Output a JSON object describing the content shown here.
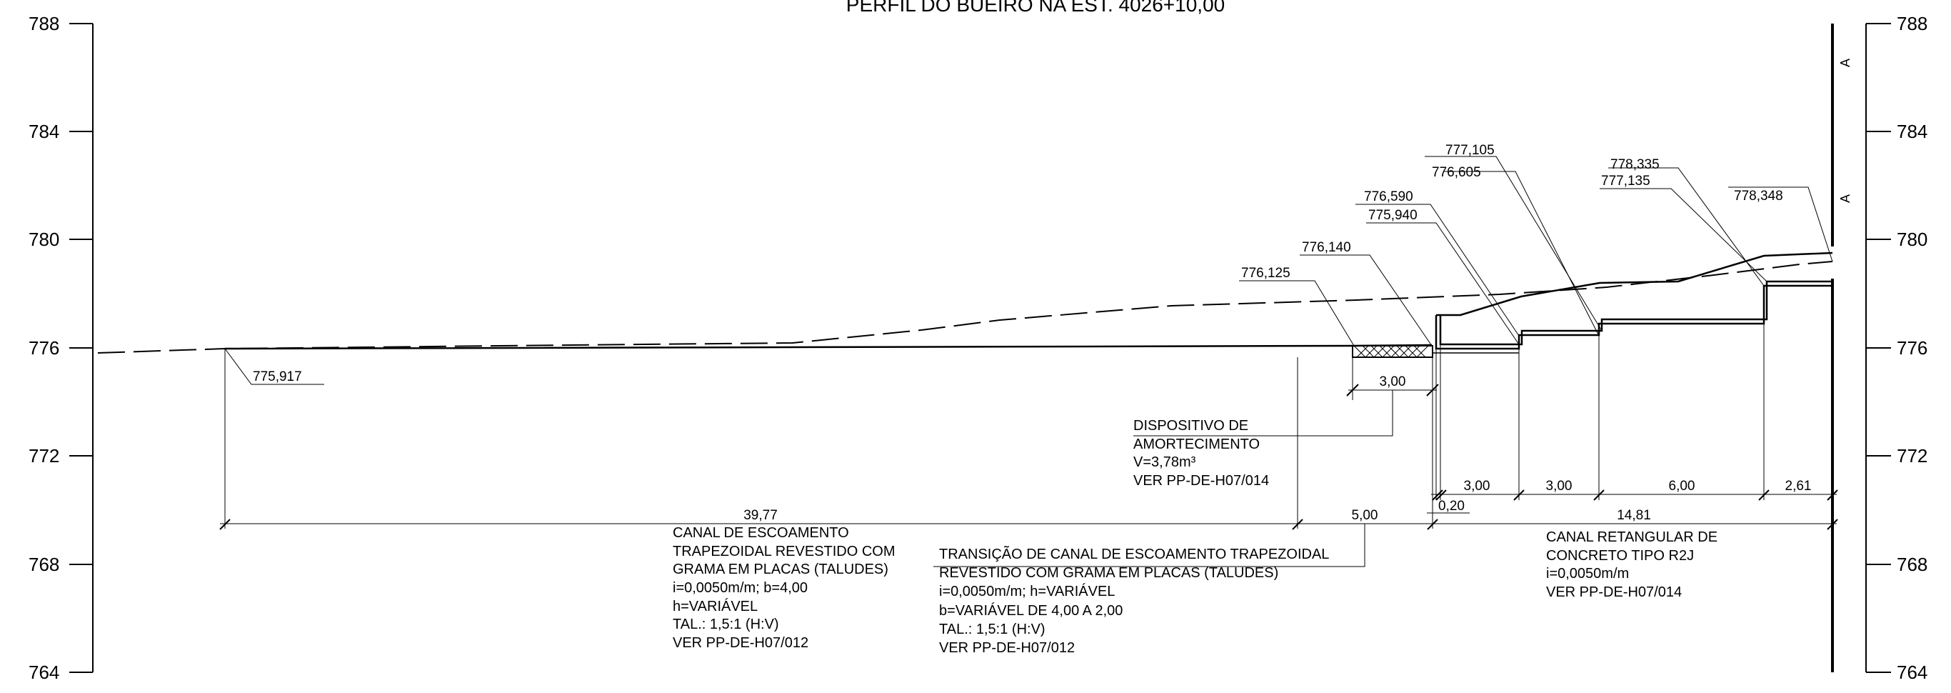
{
  "title": "PERFIL DO BUEIRO NA EST. 4026+10,00",
  "elevation_ticks": [
    "788",
    "784",
    "780",
    "776",
    "772",
    "768",
    "764"
  ],
  "section_marks": [
    "A",
    "A"
  ],
  "elevations": {
    "e775917": "775,917",
    "e776125": "776,125",
    "e776140": "776,140",
    "e775940": "775,940",
    "e776590": "776,590",
    "e776605": "776,605",
    "e777105": "777,105",
    "e777135": "777,135",
    "e778335": "778,335",
    "e778348": "778,348"
  },
  "dimensions": {
    "d3_00_top": "3,00",
    "d39_77": "39,77",
    "d5_00": "5,00",
    "d14_81": "14,81",
    "d0_20": "0,20",
    "d3_00_a": "3,00",
    "d3_00_b": "3,00",
    "d6_00": "6,00",
    "d2_61": "2,61"
  },
  "notes": {
    "dispositivo": [
      "DISPOSITIVO DE",
      "AMORTECIMENTO",
      "V=3,78m³",
      "VER PP-DE-H07/014"
    ],
    "canal_escoamento": [
      "CANAL DE ESCOAMENTO",
      "TRAPEZOIDAL REVESTIDO COM",
      "GRAMA EM PLACAS (TALUDES)",
      "i=0,0050m/m; b=4,00",
      "h=VARIÁVEL",
      "TAL.: 1,5:1 (H:V)",
      "VER PP-DE-H07/012"
    ],
    "transicao": [
      "TRANSIÇÃO DE CANAL DE ESCOAMENTO TRAPEZOIDAL",
      "REVESTIDO COM GRAMA EM PLACAS (TALUDES)",
      "i=0,0050m/m; h=VARIÁVEL",
      "b=VARIÁVEL DE 4,00 A 2,00",
      "TAL.: 1,5:1 (H:V)",
      "VER PP-DE-H07/012"
    ],
    "canal_retangular": [
      "CANAL RETANGULAR DE",
      "CONCRETO TIPO R2J",
      "i=0,0050m/m",
      "VER PP-DE-H07/014"
    ]
  },
  "colors": {
    "ink": "#000000",
    "background": "#ffffff"
  }
}
